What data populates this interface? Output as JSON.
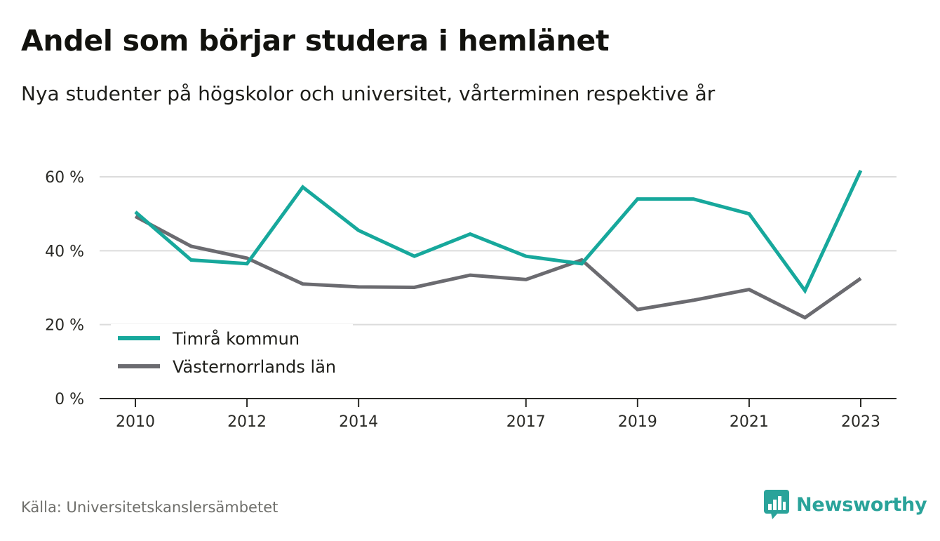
{
  "header": {
    "title": "Andel som börjar studera i hemlänet",
    "subtitle": "Nya studenter på högskolor och universitet, vårterminen respektive år"
  },
  "footer": {
    "source": "Källa: Universitetskanslersämbetet",
    "brand": "Newsworthy",
    "brand_icon": "bar-chart-speech-bubble-icon"
  },
  "colors": {
    "primary": "#17a89c",
    "secondary": "#6b6b70",
    "grid": "#dcdcdc",
    "axis": "#2a2a26",
    "brand": "#2aa39a"
  },
  "chart_data": {
    "type": "line",
    "title": "Andel som börjar studera i hemlänet",
    "subtitle": "Nya studenter på högskolor och universitet, vårterminen respektive år",
    "xlabel": "",
    "ylabel": "",
    "x": [
      2010,
      2011,
      2012,
      2013,
      2014,
      2015,
      2016,
      2017,
      2018,
      2019,
      2020,
      2021,
      2022,
      2023
    ],
    "x_tick_labels": [
      "2010",
      "2012",
      "2014",
      "2017",
      "2019",
      "2021",
      "2023"
    ],
    "y_tick_values": [
      0,
      20,
      40,
      60
    ],
    "y_tick_labels": [
      "0 %",
      "20 %",
      "40 %",
      "60 %"
    ],
    "ylim": [
      0,
      65
    ],
    "grid": true,
    "legend_position": "bottom-left",
    "series": [
      {
        "name": "Timrå kommun",
        "color": "#17a89c",
        "values": [
          50.5,
          37.5,
          36.5,
          57.2,
          45.5,
          38.5,
          44.5,
          38.5,
          36.5,
          54.0,
          54.0,
          50.0,
          29.2,
          61.7
        ]
      },
      {
        "name": "Västernorrlands län",
        "color": "#6b6b70",
        "values": [
          49.3,
          41.2,
          38.0,
          31.0,
          30.2,
          30.1,
          33.4,
          32.2,
          37.5,
          24.1,
          26.6,
          29.5,
          21.9,
          32.5
        ]
      }
    ]
  }
}
